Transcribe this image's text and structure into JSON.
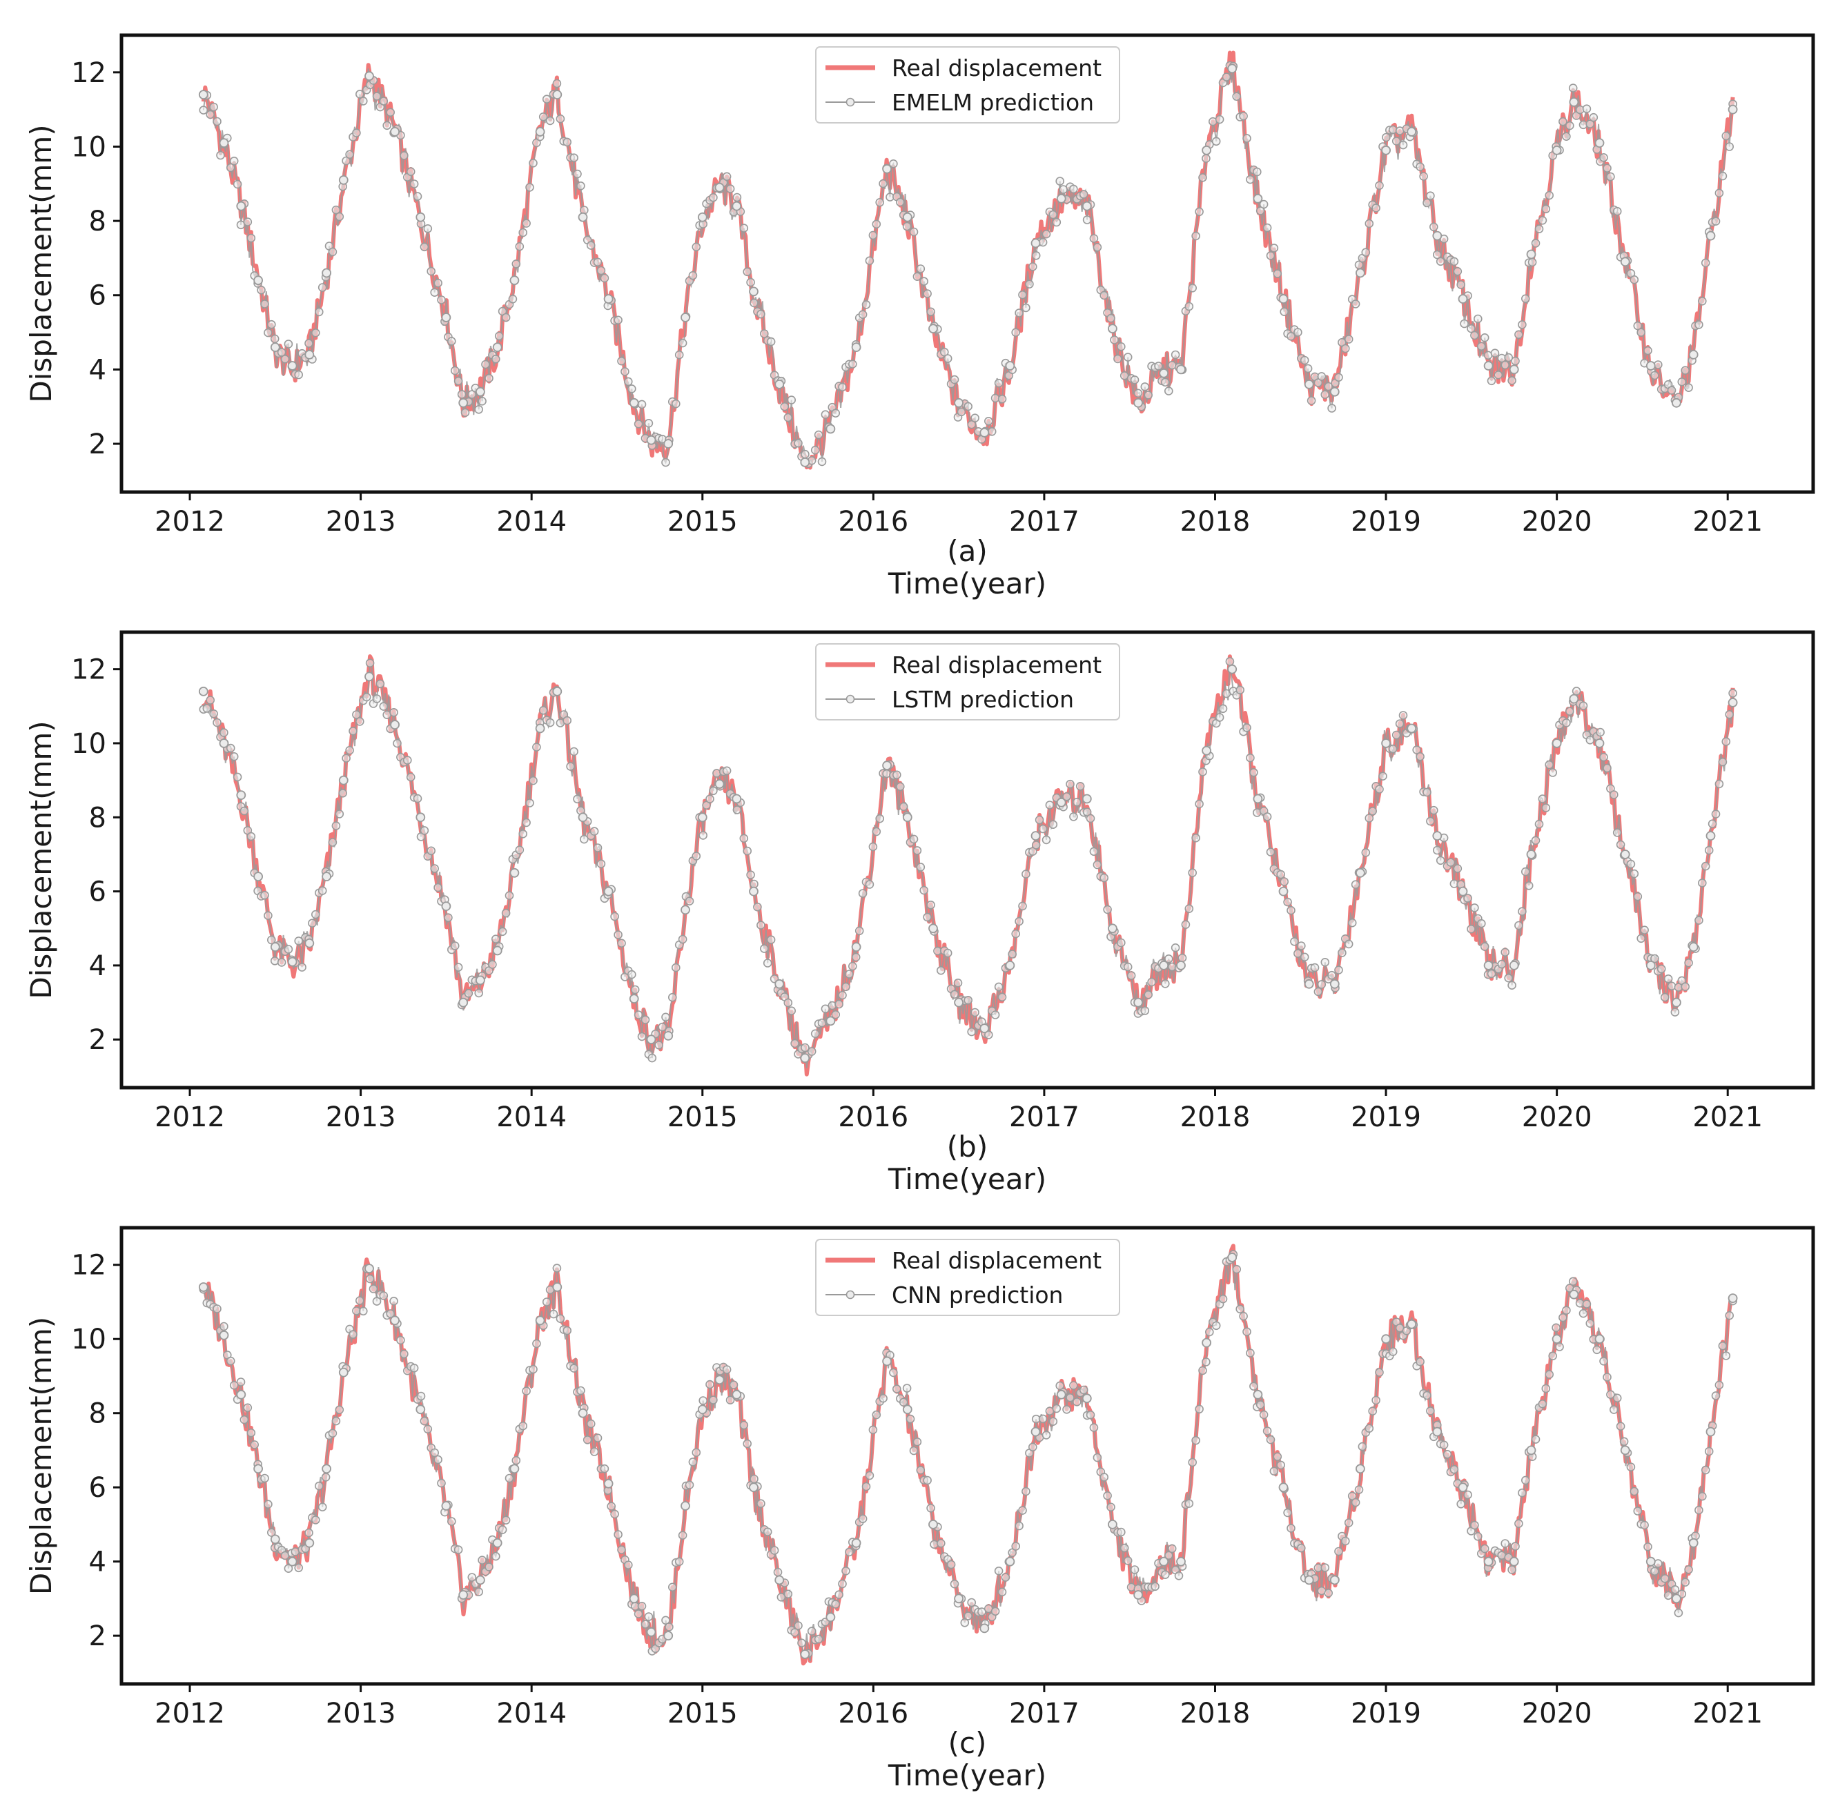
{
  "figure": {
    "panels": [
      {
        "id": "a",
        "caption": "(a)",
        "xlabel": "Time(year)",
        "ylabel": "Displacement(mm)",
        "legend": [
          "Real displacement",
          "EMELM prediction"
        ]
      },
      {
        "id": "b",
        "caption": "(b)",
        "xlabel": "Time(year)",
        "ylabel": "Displacement(mm)",
        "legend": [
          "Real displacement",
          "LSTM prediction"
        ]
      },
      {
        "id": "c",
        "caption": "(c)",
        "xlabel": "Time(year)",
        "ylabel": "Displacement(mm)",
        "legend": [
          "Real displacement",
          "CNN prediction"
        ]
      }
    ]
  },
  "colors": {
    "real": "#f07878",
    "prediction": "#9a9a9a",
    "marker_fill": "#ececec",
    "frame": "#111111"
  },
  "chart_data": [
    {
      "type": "line",
      "title": "",
      "caption": "(a)",
      "xlabel": "Time(year)",
      "ylabel": "Displacement(mm)",
      "xlim": [
        2011.6,
        2021.5
      ],
      "ylim": [
        0.7,
        13.0
      ],
      "xticks": [
        2012,
        2013,
        2014,
        2015,
        2016,
        2017,
        2018,
        2019,
        2020,
        2021
      ],
      "yticks": [
        2,
        4,
        6,
        8,
        10,
        12
      ],
      "grid": false,
      "legend_position": "top-center",
      "x": [
        2012.08,
        2012.2,
        2012.3,
        2012.4,
        2012.5,
        2012.6,
        2012.7,
        2012.8,
        2012.9,
        2013.05,
        2013.2,
        2013.35,
        2013.5,
        2013.6,
        2013.7,
        2013.8,
        2013.9,
        2014.05,
        2014.15,
        2014.3,
        2014.45,
        2014.6,
        2014.7,
        2014.8,
        2014.9,
        2015.0,
        2015.1,
        2015.2,
        2015.3,
        2015.45,
        2015.6,
        2015.75,
        2015.9,
        2016.08,
        2016.2,
        2016.35,
        2016.5,
        2016.65,
        2016.8,
        2016.95,
        2017.1,
        2017.25,
        2017.4,
        2017.55,
        2017.7,
        2017.8,
        2017.95,
        2018.1,
        2018.25,
        2018.4,
        2018.55,
        2018.7,
        2018.85,
        2019.0,
        2019.15,
        2019.3,
        2019.45,
        2019.6,
        2019.75,
        2019.85,
        2020.0,
        2020.1,
        2020.25,
        2020.4,
        2020.55,
        2020.7,
        2020.8,
        2020.9,
        2021.03
      ],
      "series": [
        {
          "name": "Real displacement",
          "values": [
            11.5,
            10.0,
            8.5,
            6.5,
            4.5,
            4.0,
            4.5,
            6.5,
            9.0,
            12.0,
            10.5,
            8.0,
            5.5,
            3.0,
            3.5,
            4.5,
            6.5,
            10.5,
            11.5,
            8.0,
            6.0,
            3.0,
            2.0,
            2.0,
            5.5,
            8.0,
            9.0,
            8.5,
            6.0,
            3.5,
            1.4,
            2.5,
            4.5,
            9.5,
            8.0,
            5.0,
            3.0,
            2.2,
            4.0,
            7.5,
            8.5,
            8.5,
            5.0,
            3.0,
            4.0,
            4.0,
            10.0,
            12.3,
            8.5,
            6.0,
            3.5,
            3.5,
            6.5,
            10.0,
            10.5,
            7.5,
            6.0,
            4.0,
            4.0,
            7.0,
            10.0,
            11.3,
            10.0,
            7.0,
            4.0,
            3.0,
            4.5,
            7.5,
            11.2
          ]
        },
        {
          "name": "EMELM prediction",
          "values": [
            11.4,
            10.1,
            8.4,
            6.4,
            4.6,
            4.1,
            4.4,
            6.6,
            9.1,
            11.9,
            10.4,
            8.1,
            5.4,
            3.1,
            3.4,
            4.6,
            6.4,
            10.4,
            11.4,
            8.1,
            5.9,
            3.1,
            2.1,
            2.0,
            5.4,
            8.1,
            8.9,
            8.4,
            6.1,
            3.6,
            1.5,
            2.4,
            4.6,
            9.4,
            8.1,
            5.1,
            3.1,
            2.3,
            4.1,
            7.4,
            8.6,
            8.4,
            5.1,
            3.1,
            3.9,
            4.0,
            9.9,
            12.1,
            8.6,
            5.9,
            3.6,
            3.4,
            6.6,
            9.9,
            10.4,
            7.6,
            5.9,
            4.1,
            4.0,
            7.1,
            9.9,
            11.2,
            10.1,
            6.9,
            4.1,
            3.1,
            4.4,
            7.6,
            11.0
          ]
        }
      ]
    },
    {
      "type": "line",
      "title": "",
      "caption": "(b)",
      "xlabel": "Time(year)",
      "ylabel": "Displacement(mm)",
      "xlim": [
        2011.6,
        2021.5
      ],
      "ylim": [
        0.7,
        13.0
      ],
      "xticks": [
        2012,
        2013,
        2014,
        2015,
        2016,
        2017,
        2018,
        2019,
        2020,
        2021
      ],
      "yticks": [
        2,
        4,
        6,
        8,
        10,
        12
      ],
      "grid": false,
      "legend_position": "top-center",
      "x": [
        2012.08,
        2012.2,
        2012.3,
        2012.4,
        2012.5,
        2012.6,
        2012.7,
        2012.8,
        2012.9,
        2013.05,
        2013.2,
        2013.35,
        2013.5,
        2013.6,
        2013.7,
        2013.8,
        2013.9,
        2014.05,
        2014.15,
        2014.3,
        2014.45,
        2014.6,
        2014.7,
        2014.8,
        2014.9,
        2015.0,
        2015.1,
        2015.2,
        2015.3,
        2015.45,
        2015.6,
        2015.75,
        2015.9,
        2016.08,
        2016.2,
        2016.35,
        2016.5,
        2016.65,
        2016.8,
        2016.95,
        2017.1,
        2017.25,
        2017.4,
        2017.55,
        2017.7,
        2017.8,
        2017.95,
        2018.1,
        2018.25,
        2018.4,
        2018.55,
        2018.7,
        2018.85,
        2019.0,
        2019.15,
        2019.3,
        2019.45,
        2019.6,
        2019.75,
        2019.85,
        2020.0,
        2020.1,
        2020.25,
        2020.4,
        2020.55,
        2020.7,
        2020.8,
        2020.9,
        2021.03
      ],
      "series": [
        {
          "name": "Real displacement",
          "values": [
            11.5,
            10.0,
            8.5,
            6.5,
            4.5,
            4.0,
            4.5,
            6.5,
            9.0,
            12.0,
            10.5,
            8.0,
            5.5,
            3.0,
            3.5,
            4.5,
            6.5,
            10.5,
            11.5,
            8.0,
            6.0,
            3.0,
            2.0,
            2.0,
            5.5,
            8.0,
            9.0,
            8.5,
            6.0,
            3.5,
            1.4,
            2.5,
            4.5,
            9.5,
            8.0,
            5.0,
            3.0,
            2.2,
            4.0,
            7.5,
            8.5,
            8.5,
            5.0,
            3.0,
            4.0,
            4.0,
            10.0,
            12.3,
            8.5,
            6.0,
            3.5,
            3.5,
            6.5,
            10.0,
            10.5,
            7.5,
            6.0,
            4.0,
            4.0,
            7.0,
            10.0,
            11.3,
            10.0,
            7.0,
            4.0,
            3.0,
            4.5,
            7.5,
            11.2
          ]
        },
        {
          "name": "LSTM prediction",
          "values": [
            11.4,
            10.0,
            8.6,
            6.4,
            4.5,
            4.1,
            4.6,
            6.4,
            9.0,
            11.8,
            10.5,
            8.0,
            5.6,
            3.0,
            3.6,
            4.4,
            6.5,
            10.4,
            11.4,
            8.0,
            6.0,
            3.1,
            2.0,
            2.1,
            5.5,
            8.0,
            8.9,
            8.5,
            6.0,
            3.5,
            1.5,
            2.5,
            4.5,
            9.4,
            8.0,
            5.0,
            3.0,
            2.3,
            4.0,
            7.5,
            8.4,
            8.5,
            5.0,
            3.0,
            4.0,
            4.0,
            9.8,
            12.0,
            8.5,
            6.0,
            3.5,
            3.5,
            6.5,
            10.0,
            10.4,
            7.5,
            6.0,
            4.0,
            4.0,
            7.0,
            10.0,
            11.2,
            10.0,
            7.0,
            4.0,
            3.0,
            4.5,
            7.5,
            11.1
          ]
        }
      ]
    },
    {
      "type": "line",
      "title": "",
      "caption": "(c)",
      "xlabel": "Time(year)",
      "ylabel": "Displacement(mm)",
      "xlim": [
        2011.6,
        2021.5
      ],
      "ylim": [
        0.7,
        13.0
      ],
      "xticks": [
        2012,
        2013,
        2014,
        2015,
        2016,
        2017,
        2018,
        2019,
        2020,
        2021
      ],
      "yticks": [
        2,
        4,
        6,
        8,
        10,
        12
      ],
      "grid": false,
      "legend_position": "top-center",
      "x": [
        2012.08,
        2012.2,
        2012.3,
        2012.4,
        2012.5,
        2012.6,
        2012.7,
        2012.8,
        2012.9,
        2013.05,
        2013.2,
        2013.35,
        2013.5,
        2013.6,
        2013.7,
        2013.8,
        2013.9,
        2014.05,
        2014.15,
        2014.3,
        2014.45,
        2014.6,
        2014.7,
        2014.8,
        2014.9,
        2015.0,
        2015.1,
        2015.2,
        2015.3,
        2015.45,
        2015.6,
        2015.75,
        2015.9,
        2016.08,
        2016.2,
        2016.35,
        2016.5,
        2016.65,
        2016.8,
        2016.95,
        2017.1,
        2017.25,
        2017.4,
        2017.55,
        2017.7,
        2017.8,
        2017.95,
        2018.1,
        2018.25,
        2018.4,
        2018.55,
        2018.7,
        2018.85,
        2019.0,
        2019.15,
        2019.3,
        2019.45,
        2019.6,
        2019.75,
        2019.85,
        2020.0,
        2020.1,
        2020.25,
        2020.4,
        2020.55,
        2020.7,
        2020.8,
        2020.9,
        2021.03
      ],
      "series": [
        {
          "name": "Real displacement",
          "values": [
            11.5,
            10.0,
            8.5,
            6.5,
            4.5,
            4.0,
            4.5,
            6.5,
            9.0,
            12.0,
            10.5,
            8.0,
            5.5,
            3.0,
            3.5,
            4.5,
            6.5,
            10.5,
            11.5,
            8.0,
            6.0,
            3.0,
            2.0,
            2.0,
            5.5,
            8.0,
            9.0,
            8.5,
            6.0,
            3.5,
            1.4,
            2.5,
            4.5,
            9.5,
            8.0,
            5.0,
            3.0,
            2.2,
            4.0,
            7.5,
            8.5,
            8.5,
            5.0,
            3.0,
            4.0,
            4.0,
            10.0,
            12.3,
            8.5,
            6.0,
            3.5,
            3.5,
            6.5,
            10.0,
            10.5,
            7.5,
            6.0,
            4.0,
            4.0,
            7.0,
            10.0,
            11.3,
            10.0,
            7.0,
            4.0,
            3.0,
            4.5,
            7.5,
            11.2
          ]
        },
        {
          "name": "CNN prediction",
          "values": [
            11.4,
            10.1,
            8.5,
            6.5,
            4.6,
            4.0,
            4.5,
            6.5,
            9.1,
            11.9,
            10.5,
            8.1,
            5.5,
            3.1,
            3.5,
            4.5,
            6.5,
            10.5,
            11.4,
            8.0,
            6.1,
            3.0,
            2.1,
            2.0,
            5.5,
            8.1,
            8.9,
            8.5,
            6.0,
            3.5,
            1.5,
            2.5,
            4.5,
            9.4,
            8.1,
            5.0,
            3.0,
            2.2,
            4.0,
            7.5,
            8.5,
            8.4,
            5.0,
            3.1,
            4.0,
            4.0,
            9.9,
            12.2,
            8.5,
            6.0,
            3.5,
            3.5,
            6.5,
            10.0,
            10.4,
            7.5,
            6.0,
            4.0,
            4.0,
            7.0,
            10.0,
            11.2,
            10.0,
            7.0,
            4.0,
            3.0,
            4.5,
            7.5,
            11.1
          ]
        }
      ]
    }
  ]
}
